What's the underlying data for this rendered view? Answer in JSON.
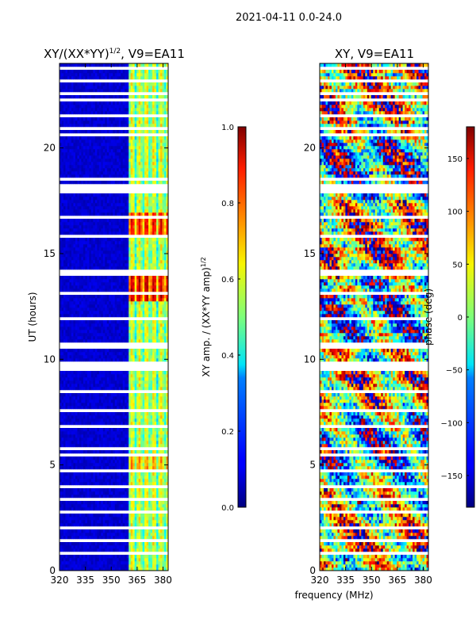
{
  "suptitle": "2021-04-11 0.0-24.0",
  "chart_data": [
    {
      "type": "heatmap",
      "title": "XY/(XX*YY)",
      "title_exponent": "1/2",
      "title_suffix": ", V9=EA11",
      "xlabel": "",
      "ylabel": "UT (hours)",
      "xlim": [
        320,
        383
      ],
      "ylim": [
        0,
        24
      ],
      "xticks": [
        320,
        335,
        350,
        365,
        380
      ],
      "yticks": [
        0,
        5,
        10,
        15,
        20
      ],
      "colormap": "jet",
      "value_range": [
        0.0,
        1.0
      ],
      "colorbar": {
        "label": "XY amp. / (XX*YY amp)",
        "label_exponent": "1/2",
        "ticks": [
          "0.0",
          "0.2",
          "0.4",
          "0.6",
          "0.8",
          "1.0"
        ],
        "values": [
          0.0,
          0.2,
          0.4,
          0.6,
          0.8,
          1.0
        ]
      },
      "typical_values": {
        "low_band": 0.05,
        "high_band_min": 0.3,
        "high_band_max": 1.0
      }
    },
    {
      "type": "heatmap",
      "title": "XY, V9=EA11",
      "xlabel": "frequency (MHz)",
      "ylabel": "",
      "xlim": [
        320,
        383
      ],
      "ylim": [
        0,
        24
      ],
      "xticks": [
        320,
        335,
        350,
        365,
        380
      ],
      "yticks": [
        0,
        5,
        10,
        15,
        20
      ],
      "colormap": "jet",
      "value_range": [
        -180,
        180
      ],
      "colorbar": {
        "label": "phase (deg)",
        "ticks": [
          "−150",
          "−100",
          "−50",
          "0",
          "50",
          "100",
          "150"
        ],
        "values": [
          -150,
          -100,
          -50,
          0,
          50,
          100,
          150
        ]
      }
    }
  ],
  "colors": {
    "background": "#ffffff",
    "jet_low": "#00007f",
    "jet_high": "#7f0000"
  }
}
